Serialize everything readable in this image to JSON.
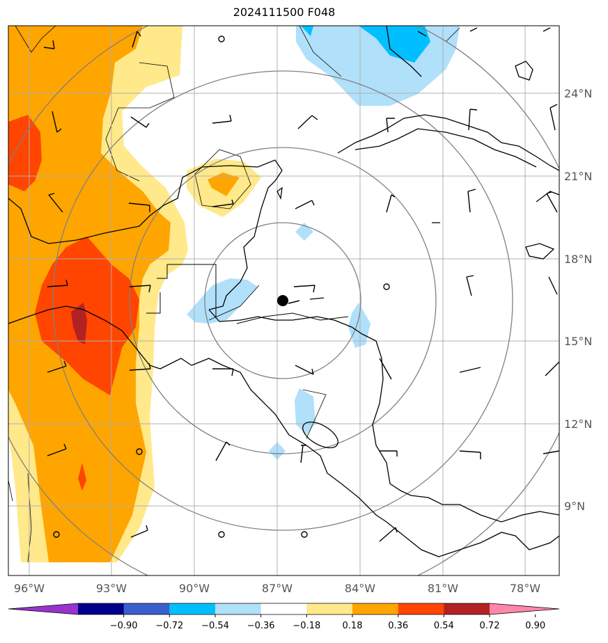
{
  "title": "2024111500 F048",
  "map": {
    "lon_labels": [
      "96°W",
      "93°W",
      "90°W",
      "87°W",
      "84°W",
      "81°W",
      "78°W"
    ],
    "lat_labels": [
      "24°N",
      "21°N",
      "18°N",
      "15°N",
      "12°N",
      "9°N"
    ],
    "lons": [
      -96,
      -93,
      -90,
      -87,
      -84,
      -81,
      -78
    ],
    "lats": [
      24,
      21,
      18,
      15,
      12,
      9
    ],
    "extent": {
      "lon": [
        -96.7,
        -76.8
      ],
      "lat": [
        7.5,
        27.4
      ]
    },
    "storm_center": {
      "lon": -86.8,
      "lat": 16.5
    },
    "range_rings": "concentric distance rings around storm center",
    "grid_color": "#b0b0b0",
    "coast_color": "#000000",
    "ring_color": "#808080"
  },
  "colorbar": {
    "tick_labels": [
      "−0.90",
      "−0.72",
      "−0.54",
      "−0.36",
      "−0.18",
      "0.18",
      "0.36",
      "0.54",
      "0.72",
      "0.90"
    ],
    "colors": [
      "#9933cc",
      "#00008b",
      "#3a5fcd",
      "#00bfff",
      "#b0e0fa",
      "#ffffff",
      "#ffe98a",
      "#ffa500",
      "#ff4500",
      "#b22222",
      "#ff88aa"
    ],
    "extend": "both"
  },
  "fields": {
    "shaded": "anomaly contours",
    "barbs": "wind barbs",
    "palette": {
      "light_blue": "#b0e0fa",
      "blue": "#00bfff",
      "yellow": "#ffe98a",
      "orange": "#ffa500",
      "red": "#ff4500",
      "dark_red": "#b22222"
    }
  }
}
